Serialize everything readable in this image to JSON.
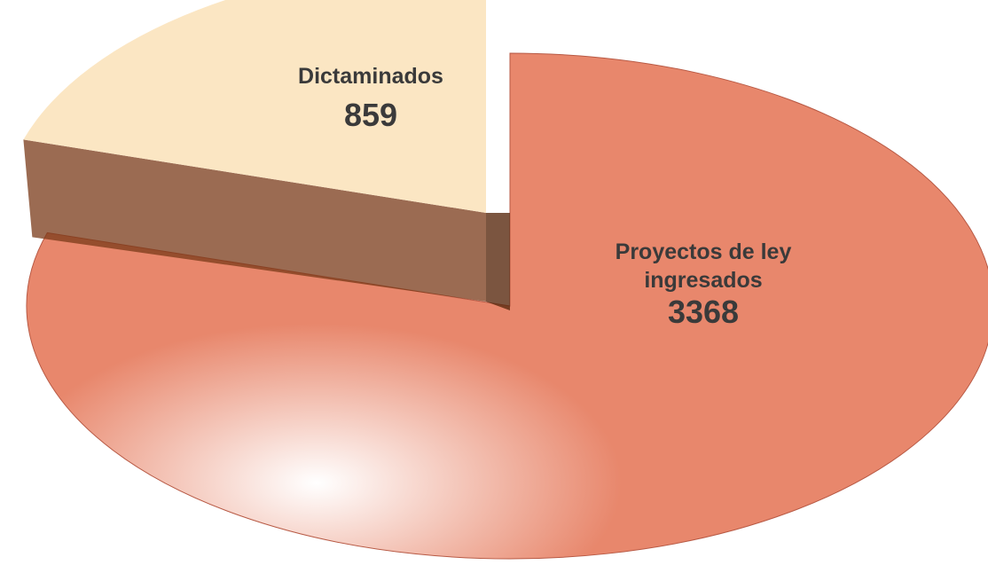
{
  "chart_data": {
    "type": "pie",
    "categories": [
      "Proyectos de ley ingresados",
      "Dictaminados"
    ],
    "values": [
      3368,
      859
    ],
    "colors": [
      "#e8876c",
      "#fbe6c3"
    ]
  }
}
